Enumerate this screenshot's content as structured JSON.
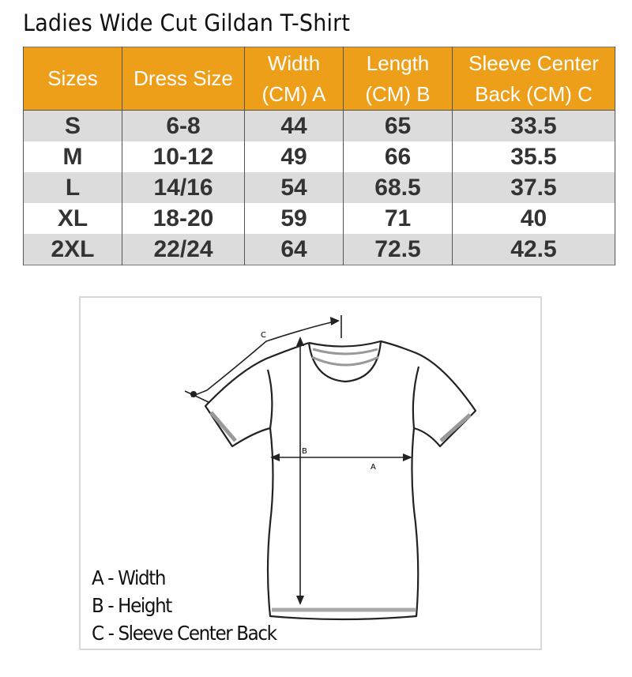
{
  "title": "Ladies Wide Cut Gildan T-Shirt",
  "colors": {
    "header_bg": "#ee9f1a",
    "row_shade": "#dcdcdc"
  },
  "table": {
    "headers": [
      "Sizes",
      "Dress Size",
      "Width (CM) A",
      "Length (CM) B",
      "Sleeve Center Back (CM) C"
    ],
    "rows": [
      [
        "S",
        "6-8",
        "44",
        "65",
        "33.5"
      ],
      [
        "M",
        "10-12",
        "49",
        "66",
        "35.5"
      ],
      [
        "L",
        "14/16",
        "54",
        "68.5",
        "37.5"
      ],
      [
        "XL",
        "18-20",
        "59",
        "71",
        "40"
      ],
      [
        "2XL",
        "22/24",
        "64",
        "72.5",
        "42.5"
      ]
    ]
  },
  "diagram": {
    "markers": {
      "a": "A",
      "b": "B",
      "c": "C"
    },
    "legend": [
      "A - Width",
      "B - Height",
      "C - Sleeve Center Back"
    ]
  }
}
